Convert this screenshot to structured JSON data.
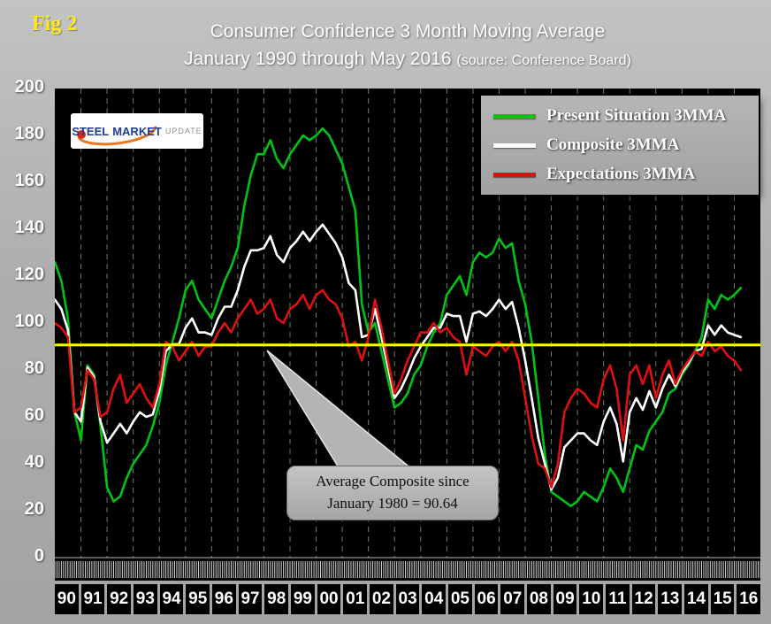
{
  "page": {
    "fig_label": "Fig 2"
  },
  "title": {
    "line1": "Consumer Confidence 3 Month Moving Average",
    "line2": "January 1990 through May 2016",
    "source": "(source: Conference Board)"
  },
  "logo": {
    "steel": "STEEL",
    "market": "MARKET",
    "update": "UPDATE"
  },
  "callout": {
    "line1": "Average Composite since",
    "line2": "January 1980 = 90.64"
  },
  "colors": {
    "background": "#aeaeae",
    "plot_background": "#000000",
    "grid": "#a2dba2",
    "tick": "#d6d6d6",
    "average_line": "#ffff00",
    "present_situation": "#00c314",
    "composite": "#ffffff",
    "expectations": "#e01010",
    "fig_label": "#ffe81a"
  },
  "chart_data": {
    "type": "line",
    "title": "Consumer Confidence 3 Month Moving Average",
    "subtitle": "January 1990 through May 2016",
    "source": "Conference Board",
    "xlim": [
      1990,
      2017
    ],
    "ylim": [
      0,
      200
    ],
    "y_ticks": [
      200,
      180,
      160,
      140,
      120,
      100,
      80,
      60,
      40,
      20,
      0
    ],
    "x_axis_years": [
      "90",
      "91",
      "92",
      "93",
      "94",
      "95",
      "96",
      "97",
      "98",
      "99",
      "00",
      "01",
      "02",
      "03",
      "04",
      "05",
      "06",
      "07",
      "08",
      "09",
      "10",
      "11",
      "12",
      "13",
      "14",
      "15",
      "16"
    ],
    "x_start_year": 1990,
    "x_step_years": 0.25,
    "grid": "vertical-dashed-yearly",
    "legend_position": "top-right",
    "average_line": {
      "label": "Average Composite since January 1980 = 90.64",
      "value": 90.64,
      "color": "#ffff00"
    },
    "series": [
      {
        "name": "Present Situation 3MMA",
        "color": "#00c314",
        "values": [
          126,
          118,
          102,
          62,
          50,
          82,
          78,
          56,
          30,
          24,
          26,
          34,
          40,
          44,
          48,
          56,
          66,
          82,
          92,
          102,
          114,
          118,
          110,
          106,
          102,
          110,
          118,
          124,
          132,
          150,
          163,
          172,
          172,
          178,
          170,
          166,
          172,
          176,
          180,
          178,
          180,
          183,
          180,
          174,
          168,
          158,
          148,
          108,
          96,
          100,
          88,
          76,
          64,
          66,
          70,
          78,
          82,
          90,
          96,
          100,
          112,
          116,
          120,
          112,
          126,
          130,
          128,
          130,
          136,
          132,
          134,
          118,
          108,
          92,
          68,
          44,
          28,
          26,
          24,
          22,
          24,
          28,
          26,
          24,
          30,
          38,
          34,
          28,
          38,
          48,
          46,
          54,
          58,
          62,
          70,
          72,
          78,
          82,
          88,
          94,
          110,
          106,
          112,
          110,
          112,
          115
        ]
      },
      {
        "name": "Composite 3MMA",
        "color": "#ffffff",
        "values": [
          110,
          106,
          97,
          62,
          58,
          81,
          77,
          58,
          49,
          53,
          57,
          53,
          58,
          62,
          60,
          61,
          71,
          88,
          91,
          91,
          98,
          102,
          96,
          96,
          95,
          102,
          107,
          107,
          114,
          124,
          131,
          131,
          132,
          137,
          129,
          126,
          132,
          135,
          139,
          135,
          139,
          142,
          138,
          134,
          128,
          117,
          114,
          94,
          95,
          106,
          94,
          81,
          68,
          72,
          78,
          85,
          90,
          94,
          98,
          98,
          104,
          103,
          103,
          92,
          104,
          105,
          103,
          106,
          110,
          106,
          109,
          98,
          84,
          68,
          51,
          40,
          29,
          34,
          47,
          50,
          53,
          53,
          50,
          48,
          58,
          64,
          57,
          41,
          62,
          68,
          63,
          71,
          64,
          72,
          78,
          73,
          79,
          83,
          88,
          89,
          99,
          95,
          99,
          96,
          95,
          94
        ]
      },
      {
        "name": "Expectations 3MMA",
        "color": "#e01010",
        "values": [
          100,
          98,
          94,
          62,
          64,
          80,
          76,
          60,
          62,
          72,
          78,
          66,
          70,
          74,
          68,
          64,
          74,
          92,
          90,
          84,
          88,
          92,
          86,
          90,
          90,
          96,
          100,
          96,
          102,
          106,
          110,
          104,
          106,
          110,
          102,
          100,
          106,
          108,
          112,
          106,
          112,
          114,
          110,
          108,
          102,
          90,
          92,
          84,
          94,
          110,
          98,
          84,
          70,
          76,
          84,
          90,
          96,
          96,
          100,
          96,
          98,
          94,
          92,
          78,
          90,
          88,
          86,
          90,
          92,
          88,
          92,
          84,
          68,
          52,
          40,
          38,
          30,
          40,
          62,
          68,
          72,
          70,
          66,
          64,
          76,
          82,
          72,
          50,
          78,
          82,
          74,
          82,
          68,
          78,
          84,
          74,
          80,
          84,
          88,
          86,
          92,
          88,
          90,
          86,
          84,
          80
        ]
      }
    ]
  }
}
